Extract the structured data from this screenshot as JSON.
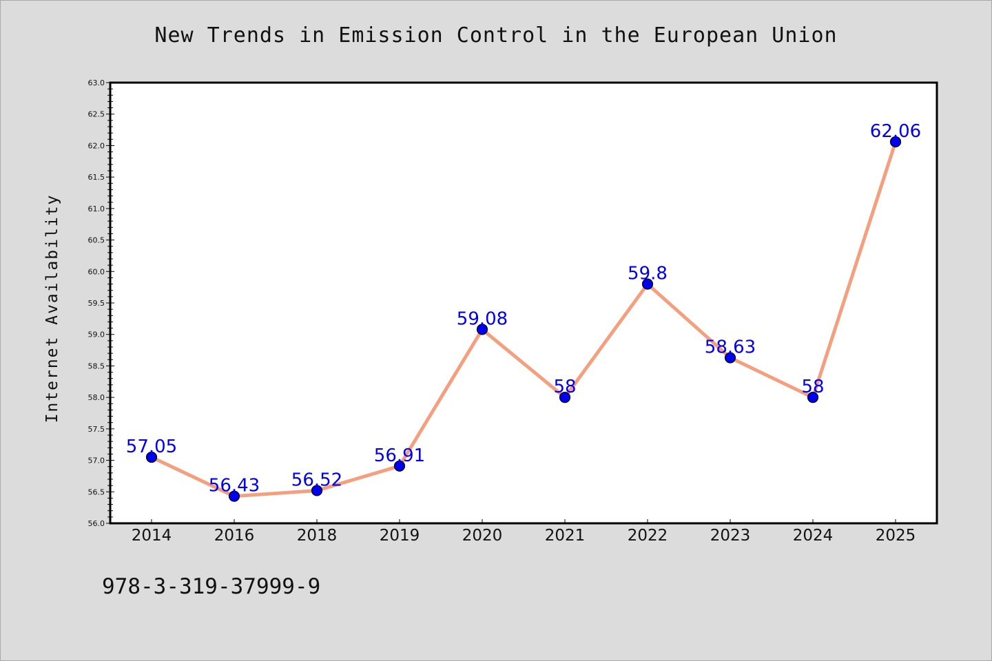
{
  "chart_data": {
    "type": "line",
    "title": "New Trends in Emission Control in the European Union",
    "xlabel": "",
    "ylabel": "Internet Availability",
    "categories": [
      "2014",
      "2016",
      "2018",
      "2019",
      "2020",
      "2021",
      "2022",
      "2023",
      "2024",
      "2025"
    ],
    "series": [
      {
        "values": [
          57.05,
          56.43,
          56.52,
          56.91,
          59.08,
          58,
          59.8,
          58.63,
          58,
          62.06
        ],
        "labels": [
          "57.05",
          "56.43",
          "56.52",
          "56.91",
          "59.08",
          "58",
          "59.8",
          "58.63",
          "58",
          "62.06"
        ],
        "line_color": "#f4a07e",
        "marker_color": "#0000ee"
      }
    ],
    "ylim": [
      56.0,
      63.0
    ],
    "y_ticks": [
      "56.0",
      "56.5",
      "57.0",
      "57.5",
      "58.0",
      "58.5",
      "59.0",
      "59.5",
      "60.0",
      "60.5",
      "61.0",
      "61.5",
      "62.0",
      "62.5",
      "63.0"
    ],
    "grid": false,
    "legend": "none",
    "label_color": "#0000ee"
  },
  "footer": {
    "code": "978-3-319-37999-9"
  }
}
